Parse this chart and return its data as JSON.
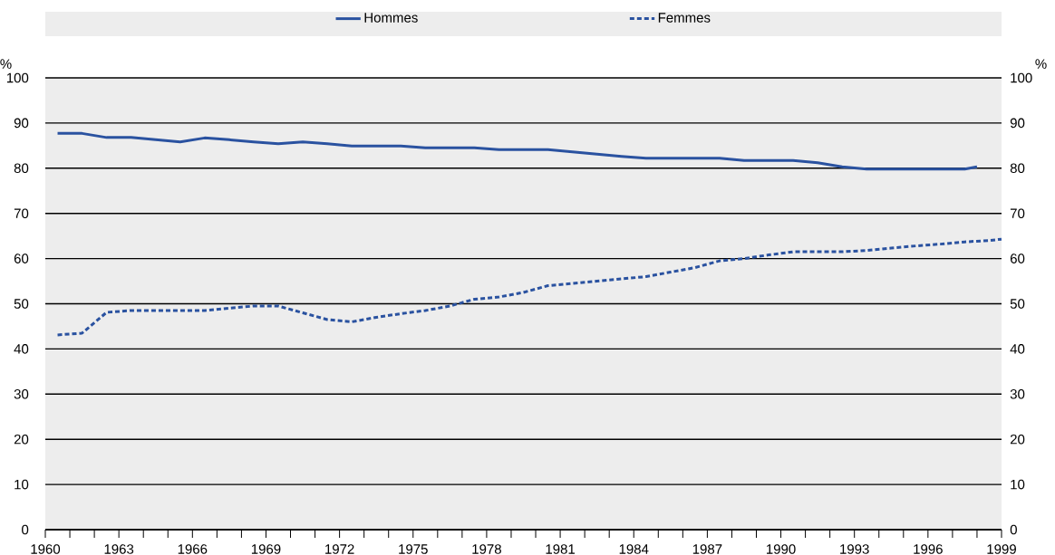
{
  "chart_data": {
    "type": "line",
    "ylabel": "%",
    "y2label": "%",
    "xlim": [
      1960,
      1999
    ],
    "xticks": [
      1960,
      {
        "value": 1961,
        "label": null
      },
      {
        "value": 1962,
        "label": null
      },
      1963,
      {
        "value": 1964,
        "label": null
      },
      {
        "value": 1965,
        "label": null
      },
      1966,
      {
        "value": 1967,
        "label": null
      },
      {
        "value": 1968,
        "label": null
      },
      1969,
      {
        "value": 1970,
        "label": null
      },
      {
        "value": 1971,
        "label": null
      },
      1972,
      {
        "value": 1973,
        "label": null
      },
      {
        "value": 1974,
        "label": null
      },
      1975,
      {
        "value": 1976,
        "label": null
      },
      {
        "value": 1977,
        "label": null
      },
      1978,
      {
        "value": 1979,
        "label": null
      },
      {
        "value": 1980,
        "label": null
      },
      1981,
      {
        "value": 1982,
        "label": null
      },
      {
        "value": 1983,
        "label": null
      },
      1984,
      {
        "value": 1985,
        "label": null
      },
      {
        "value": 1986,
        "label": null
      },
      1987,
      {
        "value": 1988,
        "label": null
      },
      {
        "value": 1989,
        "label": null
      },
      1990,
      {
        "value": 1991,
        "label": null
      },
      {
        "value": 1992,
        "label": null
      },
      1993,
      {
        "value": 1994,
        "label": null
      },
      {
        "value": 1995,
        "label": null
      },
      1996,
      {
        "value": 1997,
        "label": null
      },
      {
        "value": 1998,
        "label": null
      },
      1999
    ],
    "ylim": [
      0,
      100
    ],
    "yticks": [
      0,
      10,
      20,
      30,
      40,
      50,
      60,
      70,
      80,
      90,
      100
    ],
    "y2lim": [
      0,
      100
    ],
    "y2ticks": [
      0,
      10,
      20,
      30,
      40,
      50,
      60,
      70,
      80,
      90,
      100
    ],
    "grid": "y",
    "legend": "top",
    "series": [
      {
        "name": "Hommes",
        "color": "#2a52a0",
        "line_style": "solid",
        "x": [
          1960.5,
          1961.5,
          1962.5,
          1963.5,
          1964.5,
          1965.5,
          1966.5,
          1967.5,
          1968.5,
          1969.5,
          1970.5,
          1971.5,
          1972.5,
          1973.5,
          1974.5,
          1975.5,
          1976.5,
          1977.5,
          1978.5,
          1979.5,
          1980.5,
          1981.5,
          1982.5,
          1983.5,
          1984.5,
          1985.5,
          1986.5,
          1987.5,
          1988.5,
          1989.5,
          1990.5,
          1991.5,
          1992.5,
          1993.5,
          1994.5,
          1995.5,
          1996.5,
          1997.5,
          1998
        ],
        "values": [
          87.7,
          87.7,
          86.8,
          86.8,
          86.3,
          85.8,
          86.7,
          86.3,
          85.8,
          85.4,
          85.8,
          85.4,
          84.9,
          84.9,
          84.9,
          84.5,
          84.5,
          84.5,
          84.1,
          84.1,
          84.1,
          83.6,
          83.1,
          82.6,
          82.2,
          82.2,
          82.2,
          82.2,
          81.7,
          81.7,
          81.7,
          81.2,
          80.3,
          79.8,
          79.8,
          79.8,
          79.8,
          79.8,
          80.3
        ]
      },
      {
        "name": "Femmes",
        "color": "#2a52a0",
        "line_style": "dotted",
        "x": [
          1960.5,
          1961.5,
          1962.5,
          1963.5,
          1964.5,
          1965.5,
          1966.5,
          1967.5,
          1968.5,
          1969.5,
          1970.5,
          1971.5,
          1972.5,
          1973.5,
          1974.5,
          1975.5,
          1976.5,
          1977.5,
          1978.5,
          1979.5,
          1980.5,
          1981.5,
          1982.5,
          1983.5,
          1984.5,
          1985.5,
          1986.5,
          1987.5,
          1988.5,
          1989.5,
          1990.5,
          1991.5,
          1992.5,
          1993.5,
          1994.5,
          1995.5,
          1996.5,
          1997.5,
          1998.5,
          1999
        ],
        "values": [
          43.1,
          43.5,
          48.1,
          48.5,
          48.5,
          48.5,
          48.5,
          49,
          49.5,
          49.5,
          48,
          46.5,
          46,
          47,
          47.8,
          48.5,
          49.5,
          51,
          51.5,
          52.5,
          54,
          54.5,
          55,
          55.5,
          56,
          57,
          58,
          59.5,
          60,
          60.8,
          61.5,
          61.5,
          61.5,
          61.8,
          62.3,
          62.8,
          63.2,
          63.7,
          64,
          64.3
        ]
      }
    ]
  }
}
